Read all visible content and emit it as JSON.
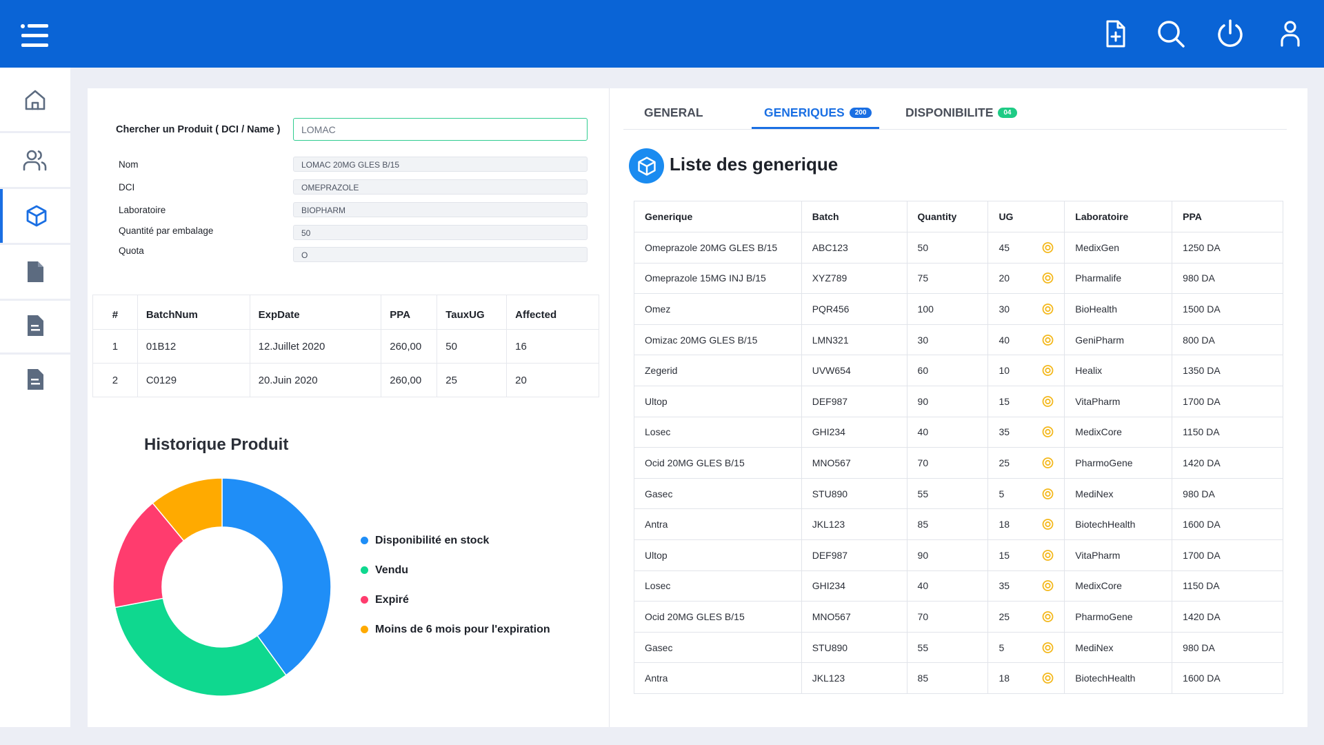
{
  "colors": {
    "topbar": "#0a64d6",
    "accent": "#1a6fe3",
    "search_border": "#2ecc8f",
    "badge_generiques": "#1a6fe3",
    "badge_disponibilite": "#1ecb85",
    "ug_icon": "#f4b81c"
  },
  "topbar": {
    "icons": [
      "menu-icon",
      "add-document-icon",
      "search-icon",
      "power-icon",
      "user-icon"
    ]
  },
  "sidebar": {
    "items": [
      {
        "icon": "home-icon",
        "active": false
      },
      {
        "icon": "users-icon",
        "active": false
      },
      {
        "icon": "box-icon",
        "active": true
      },
      {
        "icon": "document-icon",
        "active": false
      },
      {
        "icon": "report-icon",
        "active": false
      },
      {
        "icon": "report-icon",
        "active": false
      }
    ]
  },
  "search": {
    "label": "Chercher un Produit ( DCI / Name )",
    "value": "LOMAC"
  },
  "product": {
    "fields": [
      {
        "label": "Nom",
        "value": "LOMAC 20MG GLES B/15"
      },
      {
        "label": "DCI",
        "value": "OMEPRAZOLE"
      },
      {
        "label": "Laboratoire",
        "value": "BIOPHARM"
      },
      {
        "label": "Quantité par embalage",
        "value": "50"
      },
      {
        "label": "Quota",
        "value": "O"
      }
    ]
  },
  "batches": {
    "headers": [
      "#",
      "BatchNum",
      "ExpDate",
      "PPA",
      "TauxUG",
      "Affected"
    ],
    "rows": [
      [
        "1",
        "01B12",
        "12.Juillet 2020",
        "260,00",
        "50",
        "16"
      ],
      [
        "2",
        "C0129",
        "20.Juin 2020",
        "260,00",
        "25",
        "20"
      ]
    ]
  },
  "chart_data": {
    "type": "pie",
    "donut": true,
    "title": "Historique Produit",
    "categories": [
      "Disponibilité en stock",
      "Vendu",
      "Expiré",
      "Moins de 6 mois pour l'expiration"
    ],
    "values": [
      40,
      32,
      17,
      11
    ],
    "colors": [
      "#1f8ef7",
      "#0fd88f",
      "#ff3c6e",
      "#ffaa00"
    ],
    "legend_position": "right"
  },
  "tabs": [
    {
      "label": "GENERAL",
      "badge": "",
      "active": false
    },
    {
      "label": "GENERIQUES",
      "badge": "200",
      "active": true
    },
    {
      "label": "DISPONIBILITE",
      "badge": "04",
      "active": false
    }
  ],
  "generics": {
    "title": "Liste des generique",
    "headers": [
      "Generique",
      "Batch",
      "Quantity",
      "UG",
      "Laboratoire",
      "PPA"
    ],
    "rows": [
      [
        "Omeprazole  20MG GLES B/15",
        "ABC123",
        "50",
        "45",
        "MedixGen",
        "1250 DA"
      ],
      [
        "Omeprazole 15MG INJ B/15",
        "XYZ789",
        "75",
        "20",
        "Pharmalife",
        "980 DA"
      ],
      [
        "Omez",
        "PQR456",
        "100",
        "30",
        "BioHealth",
        "1500 DA"
      ],
      [
        "Omizac  20MG GLES B/15",
        "LMN321",
        "30",
        "40",
        "GeniPharm",
        "800 DA"
      ],
      [
        "Zegerid",
        "UVW654",
        "60",
        "10",
        "Healix",
        "1350 DA"
      ],
      [
        "Ultop",
        "DEF987",
        "90",
        "15",
        "VitaPharm",
        "1700 DA"
      ],
      [
        "Losec",
        "GHI234",
        "40",
        "35",
        "MedixCore",
        "1150 DA"
      ],
      [
        "Ocid  20MG GLES B/15",
        "MNO567",
        "70",
        "25",
        "PharmoGene",
        "1420 DA"
      ],
      [
        "Gasec",
        "STU890",
        "55",
        "5",
        "MediNex",
        "980 DA"
      ],
      [
        "Antra",
        "JKL123",
        "85",
        "18",
        "BiotechHealth",
        "1600 DA"
      ],
      [
        "Ultop",
        "DEF987",
        "90",
        "15",
        "VitaPharm",
        "1700 DA"
      ],
      [
        "Losec",
        "GHI234",
        "40",
        "35",
        "MedixCore",
        "1150 DA"
      ],
      [
        "Ocid  20MG GLES B/15",
        "MNO567",
        "70",
        "25",
        "PharmoGene",
        "1420 DA"
      ],
      [
        "Gasec",
        "STU890",
        "55",
        "5",
        "MediNex",
        "980 DA"
      ],
      [
        "Antra",
        "JKL123",
        "85",
        "18",
        "BiotechHealth",
        "1600 DA"
      ]
    ]
  }
}
